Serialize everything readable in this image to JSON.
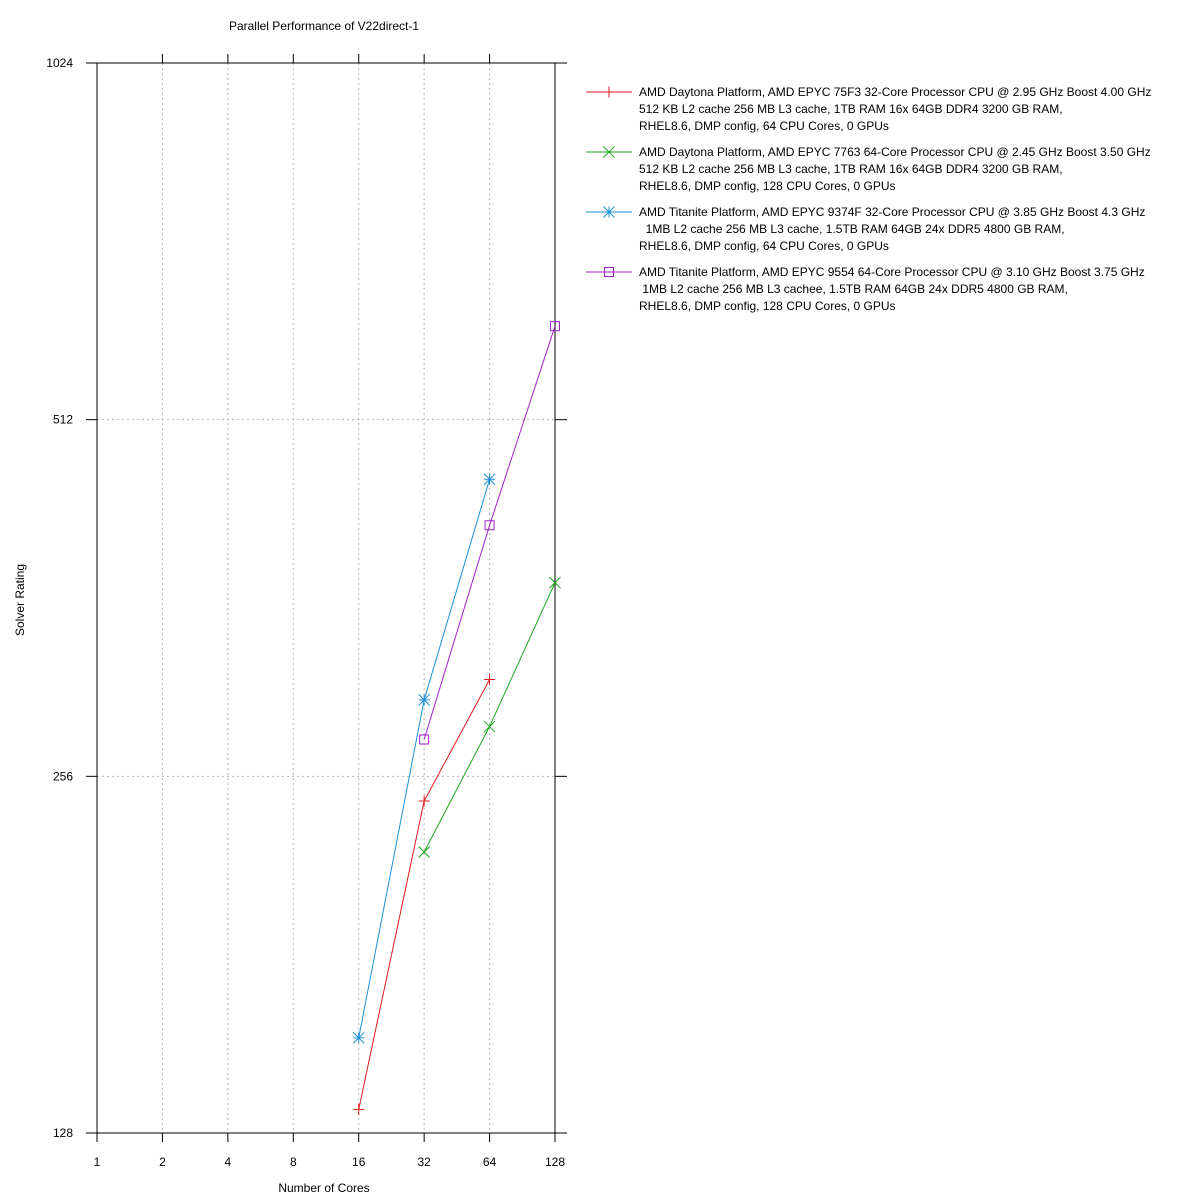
{
  "chart_data": {
    "type": "line",
    "title": "Parallel Performance of V22direct-1",
    "xlabel": "Number of Cores",
    "ylabel": "Solver Rating",
    "x_scale": "log2",
    "y_scale": "log2",
    "xlim": [
      1,
      128
    ],
    "ylim": [
      128,
      1024
    ],
    "x_ticks": [
      "1",
      "2",
      "4",
      "8",
      "16",
      "32",
      "64",
      "128"
    ],
    "y_ticks": [
      "128",
      "256",
      "512",
      "1024"
    ],
    "grid": true,
    "legend_position": "right",
    "series": [
      {
        "name_lines": [
          "AMD Daytona Platform, AMD EPYC 75F3 32-Core Processor CPU @ 2.95 GHz Boost 4.00 GHz",
          "512 KB L2 cache 256 MB L3 cache, 1TB RAM 16x 64GB DDR4 3200 GB RAM,",
          "RHEL8.6, DMP config, 64 CPU Cores, 0 GPUs"
        ],
        "color": "#e31a1c",
        "marker": "plus",
        "points": [
          [
            16,
            134
          ],
          [
            32,
            244
          ],
          [
            64,
            309
          ]
        ]
      },
      {
        "name_lines": [
          "AMD Daytona Platform, AMD EPYC 7763 64-Core Processor CPU @ 2.45 GHz Boost 3.50 GHz",
          "512 KB L2 cache 256 MB L3 cache, 1TB RAM 16x 64GB DDR4 3200 GB RAM,",
          "RHEL8.6, DMP config, 128 CPU Cores, 0 GPUs"
        ],
        "color": "#1aa51a",
        "marker": "x",
        "points": [
          [
            32,
            221
          ],
          [
            64,
            282
          ],
          [
            128,
            373
          ]
        ]
      },
      {
        "name_lines": [
          "AMD Titanite Platform, AMD EPYC 9374F 32-Core Processor CPU @ 3.85 GHz Boost 4.3 GHz",
          "  1MB L2 cache 256 MB L3 cache, 1.5TB RAM 64GB 24x DDR5 4800 GB RAM,",
          "RHEL8.6, DMP config, 64 CPU Cores, 0 GPUs"
        ],
        "color": "#1a8fd6",
        "marker": "star",
        "points": [
          [
            16,
            154
          ],
          [
            32,
            297
          ],
          [
            64,
            456
          ]
        ]
      },
      {
        "name_lines": [
          "AMD Titanite Platform, AMD EPYC 9554 64-Core Processor CPU @ 3.10 GHz Boost 3.75 GHz",
          " 1MB L2 cache 256 MB L3 cachee, 1.5TB RAM 64GB 24x DDR5 4800 GB RAM,",
          "RHEL8.6, DMP config, 128 CPU Cores, 0 GPUs"
        ],
        "color": "#a020c8",
        "marker": "square",
        "points": [
          [
            32,
            275
          ],
          [
            64,
            417
          ],
          [
            128,
            614
          ]
        ]
      }
    ]
  }
}
